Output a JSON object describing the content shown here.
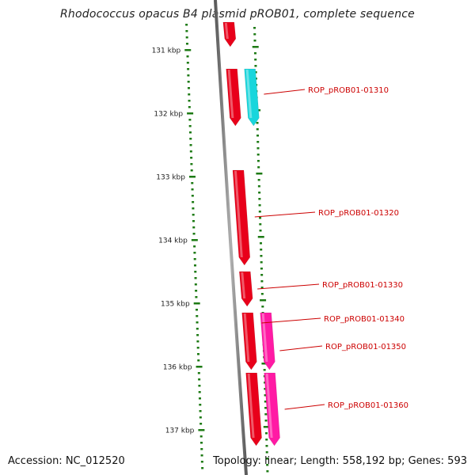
{
  "title": "Rhodococcus opacus B4 plasmid pROB01, complete sequence",
  "footer": {
    "accession": "Accession: NC_012520",
    "summary": "Topology: linear; Length: 558,192 bp; Genes: 593"
  },
  "colors": {
    "gene_red": "#e8001a",
    "gene_cyan": "#19d6dc",
    "gene_magenta": "#ff1aa4",
    "tick_green": "#1d7a14",
    "backbone": "#777777",
    "label_red": "#cc0000"
  },
  "scale": {
    "start_kbp": 130.5,
    "end_kbp": 137.6,
    "tick_labels": [
      "131 kbp",
      "132 kbp",
      "133 kbp",
      "134 kbp",
      "135 kbp",
      "136 kbp",
      "137 kbp"
    ]
  },
  "genes": [
    {
      "label": "",
      "color": "gene_red",
      "lane": 0,
      "start_kbp": 130.5,
      "end_kbp": 130.95
    },
    {
      "label": "",
      "color": "gene_red",
      "lane": 0,
      "start_kbp": 131.3,
      "end_kbp": 132.2
    },
    {
      "label": "ROP_pROB01-01310",
      "color": "gene_cyan",
      "lane": 1,
      "start_kbp": 131.3,
      "end_kbp": 132.2
    },
    {
      "label": "ROP_pROB01-01320",
      "color": "gene_red",
      "lane": 0,
      "start_kbp": 132.9,
      "end_kbp": 134.4
    },
    {
      "label": "ROP_pROB01-01330",
      "color": "gene_red",
      "lane": 0,
      "start_kbp": 134.5,
      "end_kbp": 135.05
    },
    {
      "label": "ROP_pROB01-01340",
      "color": "gene_red",
      "lane": 0,
      "start_kbp": 135.15,
      "end_kbp": 136.05
    },
    {
      "label": "ROP_pROB01-01350",
      "color": "gene_magenta",
      "lane": 1,
      "start_kbp": 135.15,
      "end_kbp": 136.05
    },
    {
      "label": "",
      "color": "gene_red",
      "lane": 0,
      "start_kbp": 136.1,
      "end_kbp": 137.25
    },
    {
      "label": "ROP_pROB01-01360",
      "color": "gene_magenta",
      "lane": 1,
      "start_kbp": 136.1,
      "end_kbp": 137.25
    }
  ]
}
